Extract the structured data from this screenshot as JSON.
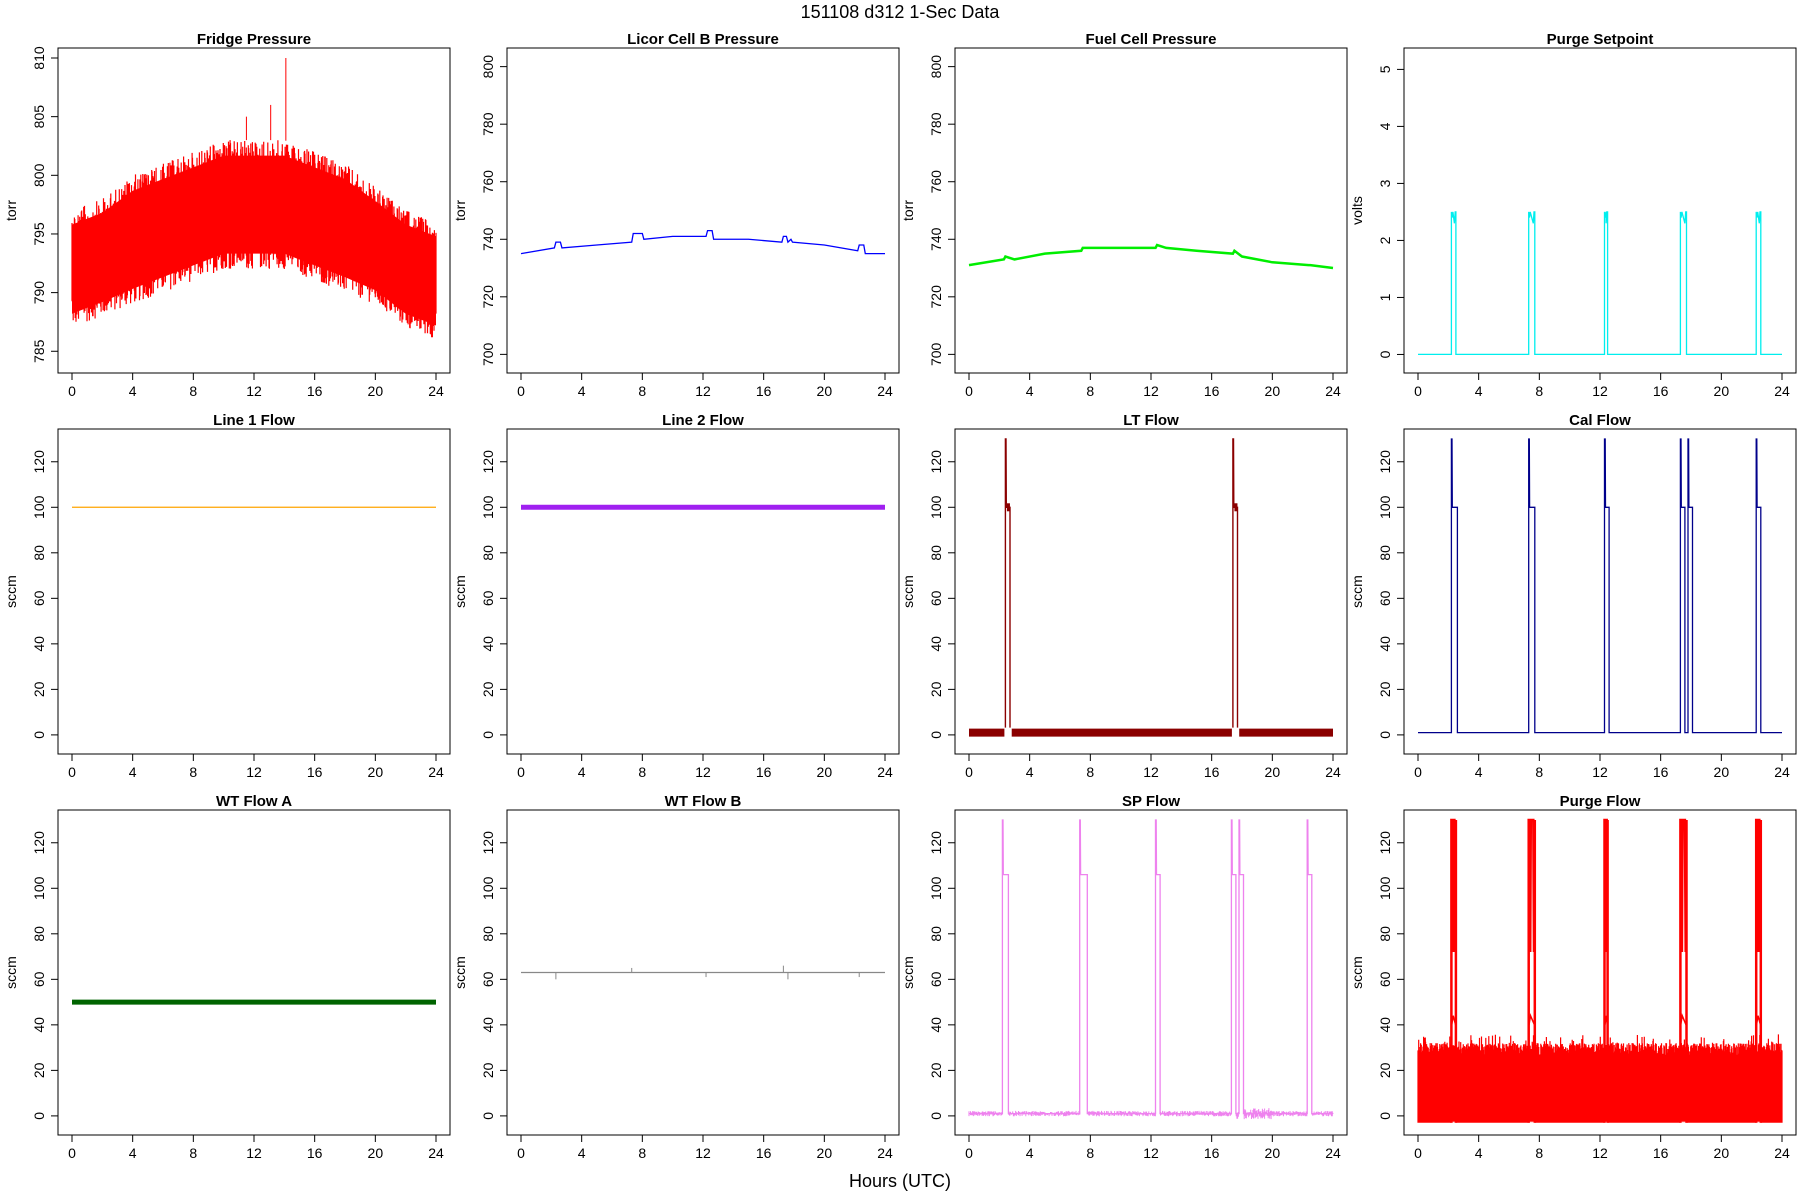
{
  "figure": {
    "title": "151108    d312    1-Sec Data",
    "xlabel": "Hours (UTC)"
  },
  "chart_data": [
    {
      "type": "line",
      "title": "Fridge Pressure",
      "ylabel": "torr",
      "xlim": [
        0,
        24
      ],
      "ylim": [
        784,
        810
      ],
      "xticks": [
        "0",
        "4",
        "8",
        "12",
        "16",
        "20",
        "24"
      ],
      "yticks": [
        "785",
        "790",
        "795",
        "800",
        "805",
        "810"
      ],
      "color": "#ff0000",
      "style": "noise",
      "series": [
        {
          "x": [
            0,
            2,
            4,
            6,
            8,
            10,
            12,
            14,
            16,
            18,
            20,
            22,
            24
          ],
          "lower": [
            787,
            788,
            789,
            790,
            791,
            792,
            792,
            792,
            791,
            790,
            789,
            787,
            786
          ],
          "upper": [
            797,
            798,
            800,
            801,
            802,
            803,
            803,
            803,
            802,
            801,
            799,
            797,
            796
          ],
          "spikes": [
            {
              "x": 14.1,
              "y": 810
            },
            {
              "x": 13.1,
              "y": 806
            },
            {
              "x": 11.5,
              "y": 805
            }
          ]
        }
      ]
    },
    {
      "type": "line",
      "title": "Licor Cell B Pressure",
      "ylabel": "torr",
      "xlim": [
        0,
        24
      ],
      "ylim": [
        697,
        803
      ],
      "xticks": [
        "0",
        "4",
        "8",
        "12",
        "16",
        "20",
        "24"
      ],
      "yticks": [
        "700",
        "720",
        "740",
        "760",
        "780",
        "800"
      ],
      "color": "#0000ff",
      "style": "line",
      "series": [
        {
          "x": [
            0,
            2.2,
            2.3,
            2.6,
            2.7,
            5,
            7.3,
            7.4,
            8,
            8.1,
            10,
            12.2,
            12.3,
            12.6,
            12.7,
            15,
            17.2,
            17.3,
            17.5,
            17.6,
            17.8,
            17.9,
            20,
            22.2,
            22.3,
            22.6,
            22.7,
            24
          ],
          "y": [
            735,
            737,
            739,
            739,
            737,
            738,
            739,
            742,
            742,
            740,
            741,
            741,
            743,
            743,
            740,
            740,
            739,
            741,
            741,
            739,
            740,
            739,
            738,
            736,
            738,
            738,
            735,
            735
          ]
        }
      ]
    },
    {
      "type": "line",
      "title": "Fuel Cell Pressure",
      "ylabel": "torr",
      "xlim": [
        0,
        24
      ],
      "ylim": [
        697,
        803
      ],
      "xticks": [
        "0",
        "4",
        "8",
        "12",
        "16",
        "20",
        "24"
      ],
      "yticks": [
        "700",
        "720",
        "740",
        "760",
        "780",
        "800"
      ],
      "color": "#00ee00",
      "style": "thick",
      "series": [
        {
          "x": [
            0,
            2.3,
            2.4,
            3,
            5,
            7.4,
            7.5,
            8,
            10,
            12.3,
            12.4,
            13,
            15,
            17.4,
            17.5,
            18,
            20,
            22.4,
            22.5,
            24
          ],
          "y": [
            731,
            733,
            734,
            733,
            735,
            736,
            737,
            737,
            737,
            737,
            738,
            737,
            736,
            735,
            736,
            734,
            732,
            731,
            731,
            730
          ]
        }
      ]
    },
    {
      "type": "line",
      "title": "Purge Setpoint",
      "ylabel": "volts",
      "xlim": [
        0,
        24
      ],
      "ylim": [
        -0.15,
        5.2
      ],
      "xticks": [
        "0",
        "4",
        "8",
        "12",
        "16",
        "20",
        "24"
      ],
      "yticks": [
        "0",
        "1",
        "2",
        "3",
        "4",
        "5"
      ],
      "color": "#00eeee",
      "style": "pulses",
      "series": [
        {
          "baseline": 0,
          "high": 2.5,
          "pulses": [
            [
              2.2,
              2.5
            ],
            [
              7.3,
              7.7
            ],
            [
              12.3,
              12.5
            ],
            [
              17.3,
              17.7
            ],
            [
              22.3,
              22.6
            ]
          ]
        }
      ]
    },
    {
      "type": "line",
      "title": "Line 1 Flow",
      "ylabel": "sccm",
      "xlim": [
        0,
        24
      ],
      "ylim": [
        -4,
        130
      ],
      "xticks": [
        "0",
        "4",
        "8",
        "12",
        "16",
        "20",
        "24"
      ],
      "yticks": [
        "0",
        "20",
        "40",
        "60",
        "80",
        "100",
        "120"
      ],
      "color": "#ffa500",
      "style": "line",
      "series": [
        {
          "x": [
            0,
            24
          ],
          "y": [
            100,
            100
          ]
        }
      ]
    },
    {
      "type": "line",
      "title": "Line 2 Flow",
      "ylabel": "sccm",
      "xlim": [
        0,
        24
      ],
      "ylim": [
        -4,
        130
      ],
      "xticks": [
        "0",
        "4",
        "8",
        "12",
        "16",
        "20",
        "24"
      ],
      "yticks": [
        "0",
        "20",
        "40",
        "60",
        "80",
        "100",
        "120"
      ],
      "color": "#a020f0",
      "style": "band",
      "series": [
        {
          "x": [
            0,
            24
          ],
          "y": [
            100,
            100
          ]
        }
      ]
    },
    {
      "type": "line",
      "title": "LT Flow",
      "ylabel": "sccm",
      "xlim": [
        0,
        24
      ],
      "ylim": [
        -4,
        130
      ],
      "xticks": [
        "0",
        "4",
        "8",
        "12",
        "16",
        "20",
        "24"
      ],
      "yticks": [
        "0",
        "20",
        "40",
        "60",
        "80",
        "100",
        "120"
      ],
      "color": "#8b0000",
      "style": "pulses",
      "series": [
        {
          "baseline": 1,
          "high": 100,
          "spike": 130,
          "pulses": [
            [
              2.4,
              2.7
            ],
            [
              17.4,
              17.7
            ]
          ]
        }
      ]
    },
    {
      "type": "line",
      "title": "Cal Flow",
      "ylabel": "sccm",
      "xlim": [
        0,
        24
      ],
      "ylim": [
        -4,
        130
      ],
      "xticks": [
        "0",
        "4",
        "8",
        "12",
        "16",
        "20",
        "24"
      ],
      "yticks": [
        "0",
        "20",
        "40",
        "60",
        "80",
        "100",
        "120"
      ],
      "color": "#00008b",
      "style": "pulses",
      "series": [
        {
          "baseline": 1,
          "high": 100,
          "spike": 130,
          "pulses": [
            [
              2.2,
              2.6
            ],
            [
              7.3,
              7.7
            ],
            [
              12.3,
              12.6
            ],
            [
              17.3,
              17.6
            ],
            [
              17.8,
              18.1
            ],
            [
              22.3,
              22.6
            ]
          ]
        }
      ]
    },
    {
      "type": "line",
      "title": "WT Flow A",
      "ylabel": "sccm",
      "xlim": [
        0,
        24
      ],
      "ylim": [
        -4,
        130
      ],
      "xticks": [
        "0",
        "4",
        "8",
        "12",
        "16",
        "20",
        "24"
      ],
      "yticks": [
        "0",
        "20",
        "40",
        "60",
        "80",
        "100",
        "120"
      ],
      "color": "#006400",
      "style": "band",
      "series": [
        {
          "x": [
            0,
            24
          ],
          "y": [
            50,
            50
          ]
        }
      ]
    },
    {
      "type": "line",
      "title": "WT Flow B",
      "ylabel": "sccm",
      "xlim": [
        0,
        24
      ],
      "ylim": [
        -4,
        130
      ],
      "xticks": [
        "0",
        "4",
        "8",
        "12",
        "16",
        "20",
        "24"
      ],
      "yticks": [
        "0",
        "20",
        "40",
        "60",
        "80",
        "100",
        "120"
      ],
      "color": "#888888",
      "style": "line",
      "series": [
        {
          "x": [
            0,
            24
          ],
          "y": [
            63,
            63
          ],
          "spikes": [
            {
              "x": 2.3,
              "y": 60
            },
            {
              "x": 7.3,
              "y": 65
            },
            {
              "x": 12.2,
              "y": 61
            },
            {
              "x": 17.3,
              "y": 66
            },
            {
              "x": 17.6,
              "y": 60
            },
            {
              "x": 22.3,
              "y": 61
            }
          ]
        }
      ]
    },
    {
      "type": "line",
      "title": "SP Flow",
      "ylabel": "sccm",
      "xlim": [
        0,
        24
      ],
      "ylim": [
        -4,
        130
      ],
      "xticks": [
        "0",
        "4",
        "8",
        "12",
        "16",
        "20",
        "24"
      ],
      "yticks": [
        "0",
        "20",
        "40",
        "60",
        "80",
        "100",
        "120"
      ],
      "color": "#ee82ee",
      "style": "pulses",
      "series": [
        {
          "baseline": 1,
          "high": 106,
          "spike": 130,
          "pulses": [
            [
              2.2,
              2.6
            ],
            [
              7.3,
              7.8
            ],
            [
              12.3,
              12.6
            ],
            [
              17.3,
              17.6
            ],
            [
              17.8,
              18.1
            ],
            [
              22.3,
              22.6
            ]
          ]
        }
      ]
    },
    {
      "type": "line",
      "title": "Purge Flow",
      "ylabel": "sccm",
      "xlim": [
        0,
        24
      ],
      "ylim": [
        -4,
        130
      ],
      "xticks": [
        "0",
        "4",
        "8",
        "12",
        "16",
        "20",
        "24"
      ],
      "yticks": [
        "0",
        "20",
        "40",
        "60",
        "80",
        "100",
        "120"
      ],
      "color": "#ff0000",
      "style": "noise-pulses",
      "series": [
        {
          "lower": -3,
          "upper": 32,
          "pulses": [
            [
              2.2,
              2.5
            ],
            [
              7.3,
              7.7
            ],
            [
              12.3,
              12.5
            ],
            [
              17.3,
              17.7
            ],
            [
              22.3,
              22.6
            ]
          ],
          "spike": 130
        }
      ]
    }
  ]
}
